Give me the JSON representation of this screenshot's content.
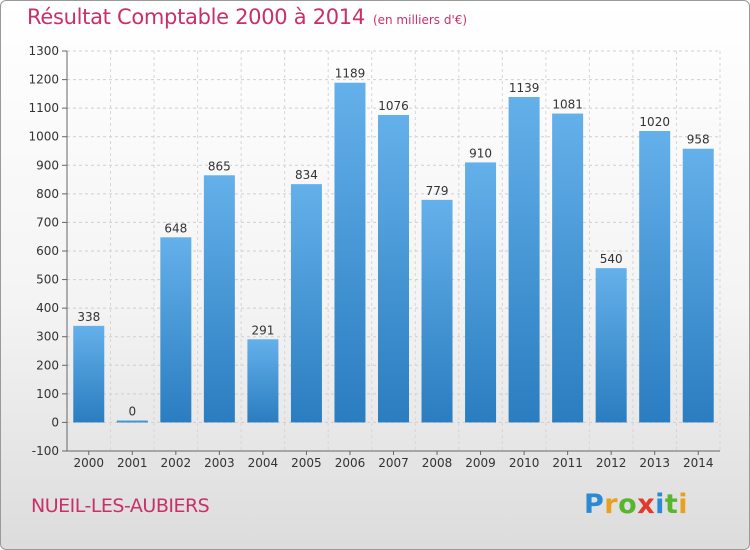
{
  "chart_data": {
    "type": "bar",
    "title": "Résultat Comptable 2000 à 2014",
    "subtitle": "(en milliers d'€)",
    "categories": [
      "2000",
      "2001",
      "2002",
      "2003",
      "2004",
      "2005",
      "2006",
      "2007",
      "2008",
      "2009",
      "2010",
      "2011",
      "2012",
      "2013",
      "2014"
    ],
    "values": [
      338,
      0,
      648,
      865,
      291,
      834,
      1189,
      1076,
      779,
      910,
      1139,
      1081,
      540,
      1020,
      958
    ],
    "ylim": [
      -100,
      1300
    ],
    "yticks": [
      -100,
      0,
      100,
      200,
      300,
      400,
      500,
      600,
      700,
      800,
      900,
      1000,
      1100,
      1200,
      1300
    ],
    "grid": true,
    "xlabel": "",
    "ylabel": ""
  },
  "footer": {
    "commune": "NUEIL-LES-AUBIERS",
    "logo": "Proxiti"
  },
  "colors": {
    "title": "#c8306a",
    "bar_top": "#64b0ea",
    "bar_bottom": "#2a7dc0"
  }
}
